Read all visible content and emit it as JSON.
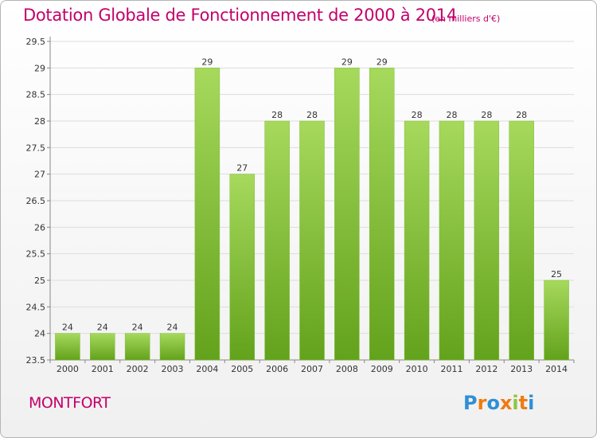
{
  "header": {
    "title": "Dotation Globale de Fonctionnement de 2000 à 2014",
    "subtitle": "(en milliers d'€)"
  },
  "footer": {
    "commune": "MONTFORT",
    "logo_text": "Proxiti",
    "logo_colors": [
      "#2f8fd6",
      "#f07b12",
      "#2f8fd6",
      "#f07b12",
      "#8dc63f",
      "#f07b12",
      "#2f8fd6"
    ]
  },
  "colors": {
    "title": "#c4006b",
    "bar_light": "#a6d95c",
    "bar_dark": "#63a21c",
    "grid": "#dddddd"
  },
  "chart_data": {
    "type": "bar",
    "title": "Dotation Globale de Fonctionnement de 2000 à 2014",
    "xlabel": "",
    "ylabel": "",
    "categories": [
      "2000",
      "2001",
      "2002",
      "2003",
      "2004",
      "2005",
      "2006",
      "2007",
      "2008",
      "2009",
      "2010",
      "2011",
      "2012",
      "2013",
      "2014"
    ],
    "values": [
      24,
      24,
      24,
      24,
      29,
      27,
      28,
      28,
      29,
      29,
      28,
      28,
      28,
      28,
      25
    ],
    "data_labels": [
      "24",
      "24",
      "24",
      "24",
      "29",
      "27",
      "28",
      "28",
      "29",
      "29",
      "28",
      "28",
      "28",
      "28",
      "25"
    ],
    "ylim": [
      23.5,
      29.5
    ],
    "yticks": [
      "23.5",
      "24",
      "24.5",
      "25",
      "25.5",
      "26",
      "26.5",
      "27",
      "27.5",
      "28",
      "28.5",
      "29",
      "29.5"
    ],
    "grid": true
  }
}
